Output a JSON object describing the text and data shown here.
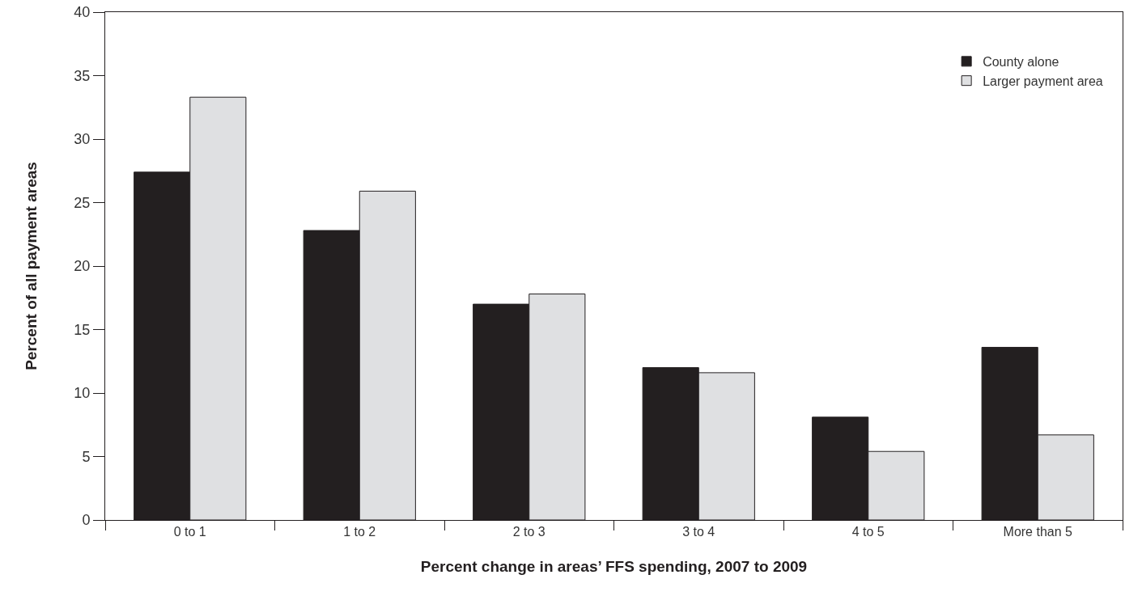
{
  "chart_data": {
    "type": "bar",
    "xlabel": "Percent change in areas’ FFS spending, 2007 to 2009",
    "ylabel": "Percent of all payment areas",
    "categories": [
      "0 to 1",
      "1 to 2",
      "2 to 3",
      "3 to 4",
      "4 to 5",
      "More than 5"
    ],
    "series": [
      {
        "name": "County alone",
        "color": "#231f20",
        "values": [
          27.4,
          22.8,
          17.0,
          12.0,
          8.1,
          13.6
        ]
      },
      {
        "name": "Larger payment area",
        "color": "#dfe0e2",
        "values": [
          33.3,
          25.9,
          17.8,
          11.6,
          5.4,
          6.7
        ]
      }
    ],
    "ylim": [
      0,
      40
    ],
    "yticks": [
      0,
      5,
      10,
      15,
      20,
      25,
      30,
      35,
      40
    ],
    "grid": false,
    "legend": "top right"
  }
}
